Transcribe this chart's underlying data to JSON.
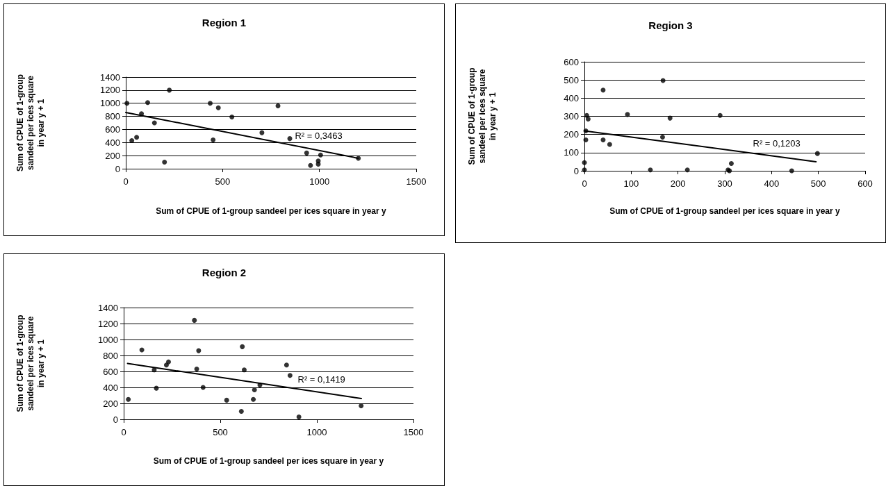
{
  "chart_data": [
    {
      "type": "scatter",
      "title": "Region 1",
      "xlabel": "Sum of CPUE of 1-group sandeel per ices square in year y",
      "ylabel": "Sum of CPUE of 1-group\nsandeel per ices square\nin year y + 1",
      "xlim": [
        0,
        1500
      ],
      "xticks": [
        0,
        500,
        1000,
        1500
      ],
      "ylim": [
        0,
        1400
      ],
      "yticks": [
        0,
        200,
        400,
        600,
        800,
        1000,
        1200,
        1400
      ],
      "grid": "y",
      "series": [
        {
          "type": "scatter",
          "marker": "circle",
          "color": "#000000",
          "x": [
            6,
            225,
            113,
            81,
            148,
            31,
            56,
            200,
            436,
            478,
            548,
            451,
            703,
            786,
            847,
            934,
            1006,
            994,
            994,
            954,
            1201
          ],
          "values": [
            1000,
            1200,
            1010,
            840,
            700,
            430,
            480,
            100,
            1000,
            930,
            790,
            440,
            550,
            960,
            460,
            240,
            210,
            120,
            70,
            50,
            160
          ]
        },
        {
          "type": "line",
          "color": "#000000",
          "x": [
            0,
            1200
          ],
          "values": [
            860,
            160
          ]
        }
      ],
      "annotations": [
        "R² = 0,3463"
      ]
    },
    {
      "type": "scatter",
      "title": "Region 3",
      "xlabel": "Sum of CPUE of 1-group sandeel per ices square in year y",
      "ylabel": "Sum of CPUE of 1-group\nsandeel per ices square\nin year y + 1",
      "xlim": [
        0,
        600
      ],
      "xticks": [
        0,
        100,
        200,
        300,
        400,
        500,
        600
      ],
      "ylim": [
        0,
        600
      ],
      "yticks": [
        0,
        100,
        200,
        300,
        400,
        500,
        600
      ],
      "grid": "y",
      "series": [
        {
          "type": "scatter",
          "marker": "circle",
          "color": "#000000",
          "x": [
            0,
            0,
            3,
            3,
            5,
            8,
            40,
            40,
            54,
            92,
            141,
            167,
            168,
            183,
            220,
            290,
            307,
            310,
            314,
            443,
            498
          ],
          "values": [
            5,
            45,
            170,
            220,
            305,
            285,
            444,
            170,
            145,
            310,
            5,
            185,
            497,
            290,
            5,
            305,
            5,
            0,
            40,
            0,
            95
          ]
        },
        {
          "type": "line",
          "color": "#000000",
          "x": [
            0,
            495
          ],
          "values": [
            220,
            50
          ]
        }
      ],
      "annotations": [
        "R² = 0,1203"
      ]
    },
    {
      "type": "scatter",
      "title": "Region 2",
      "xlabel": "Sum of CPUE of 1-group sandeel per ices square in year y",
      "ylabel": "Sum of CPUE of 1-group\nsandeel per ices square\nin year y + 1",
      "xlim": [
        0,
        1500
      ],
      "xticks": [
        0,
        500,
        1000,
        1500
      ],
      "ylim": [
        0,
        1400
      ],
      "yticks": [
        0,
        200,
        400,
        600,
        800,
        1000,
        1200,
        1400
      ],
      "grid": "y",
      "series": [
        {
          "type": "scatter",
          "marker": "circle",
          "color": "#000000",
          "x": [
            24,
            94,
            158,
            169,
            221,
            232,
            366,
            388,
            378,
            411,
            533,
            614,
            624,
            609,
            671,
            677,
            705,
            843,
            861,
            907,
            1229
          ],
          "values": [
            250,
            870,
            620,
            390,
            680,
            720,
            1240,
            860,
            630,
            400,
            240,
            910,
            620,
            100,
            250,
            370,
            430,
            680,
            550,
            30,
            170
          ]
        },
        {
          "type": "line",
          "color": "#000000",
          "x": [
            20,
            1230
          ],
          "values": [
            700,
            260
          ]
        }
      ],
      "annotations": [
        "R² = 0,1419"
      ]
    }
  ]
}
